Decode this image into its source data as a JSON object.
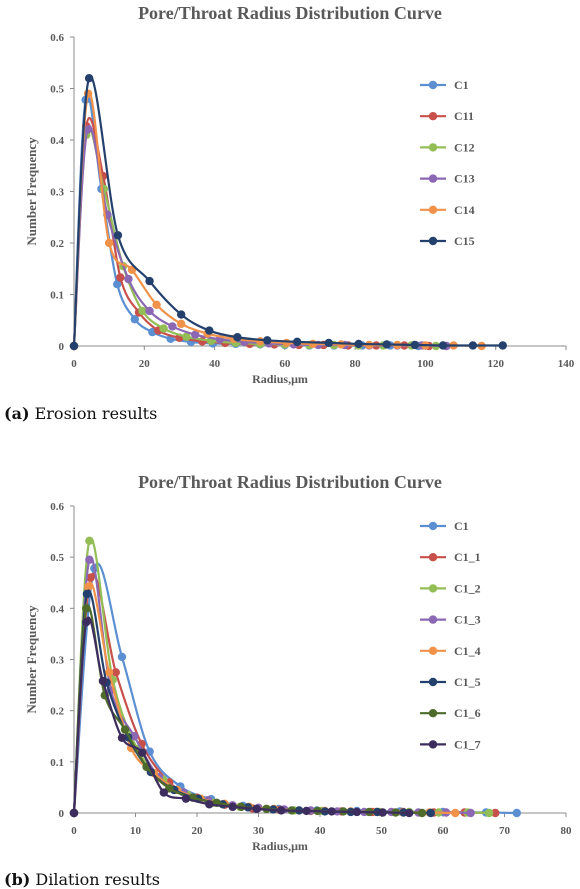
{
  "chart_data": [
    {
      "type": "line",
      "title": "Pore/Throat Radius Distribution Curve",
      "xlabel": "Radius,μm",
      "ylabel": "Number Frequency",
      "xlim": [
        0,
        140
      ],
      "ylim": [
        0,
        0.6
      ],
      "xticks": [
        0,
        20,
        40,
        60,
        80,
        100,
        120,
        140
      ],
      "yticks": [
        0,
        0.1,
        0.2,
        0.3,
        0.4,
        0.5,
        0.6
      ],
      "grid": false,
      "legend": "right",
      "series": [
        {
          "name": "C1",
          "color": "#5b8fd2",
          "x": [
            0,
            3.3,
            7.8,
            12.3,
            17.3,
            22.3,
            27.5,
            33.3,
            39.5,
            46,
            53,
            60,
            67,
            74,
            82,
            90,
            98
          ],
          "y": [
            0,
            0.478,
            0.305,
            0.12,
            0.052,
            0.027,
            0.014,
            0.008,
            0.005,
            0.004,
            0.003,
            0.002,
            0.001,
            0.001,
            0.001,
            0.001,
            0
          ]
        },
        {
          "name": "C11",
          "color": "#c8504b",
          "x": [
            0,
            3.5,
            8.3,
            13.2,
            18.5,
            24,
            30,
            36.5,
            43,
            50,
            57,
            64,
            71,
            78,
            86,
            94,
            101
          ],
          "y": [
            0,
            0.427,
            0.33,
            0.133,
            0.065,
            0.03,
            0.016,
            0.009,
            0.006,
            0.004,
            0.003,
            0.002,
            0.002,
            0.001,
            0.001,
            0.001,
            0
          ]
        },
        {
          "name": "C12",
          "color": "#93be55",
          "x": [
            0,
            3.5,
            8.5,
            14,
            19.5,
            25.5,
            32,
            39,
            46,
            53,
            60,
            67,
            74,
            81,
            88,
            96,
            103
          ],
          "y": [
            0,
            0.41,
            0.305,
            0.155,
            0.068,
            0.034,
            0.018,
            0.01,
            0.006,
            0.004,
            0.003,
            0.002,
            0.002,
            0.001,
            0.001,
            0.001,
            0
          ]
        },
        {
          "name": "C13",
          "color": "#8b67b4",
          "x": [
            0,
            3.8,
            9.5,
            15.5,
            21.5,
            28,
            34.5,
            41.5,
            48.5,
            55.5,
            62.5,
            69.5,
            77,
            84,
            92,
            99,
            106
          ],
          "y": [
            0,
            0.42,
            0.255,
            0.13,
            0.068,
            0.038,
            0.022,
            0.013,
            0.008,
            0.005,
            0.003,
            0.002,
            0.002,
            0.001,
            0.001,
            0.001,
            0
          ]
        },
        {
          "name": "C14",
          "color": "#f0924a",
          "x": [
            0,
            4,
            10,
            16.5,
            23.5,
            30.5,
            38,
            45.5,
            53,
            60.5,
            68,
            76,
            84,
            92,
            100,
            108,
            116
          ],
          "y": [
            0,
            0.49,
            0.2,
            0.148,
            0.08,
            0.043,
            0.024,
            0.014,
            0.009,
            0.006,
            0.004,
            0.003,
            0.002,
            0.002,
            0.001,
            0.001,
            0
          ]
        },
        {
          "name": "C15",
          "color": "#24406c",
          "x": [
            0,
            4.3,
            12.5,
            21.5,
            30.5,
            38.5,
            46.5,
            55,
            63.5,
            72.5,
            81,
            89,
            97,
            105,
            113.5,
            122
          ],
          "y": [
            0,
            0.52,
            0.215,
            0.126,
            0.061,
            0.03,
            0.017,
            0.011,
            0.008,
            0.006,
            0.004,
            0.003,
            0.002,
            0.001,
            0.001,
            0.001
          ]
        }
      ]
    },
    {
      "type": "line",
      "title": "Pore/Throat Radius Distribution Curve",
      "xlabel": "Radius,μm",
      "ylabel": "Number Frequency",
      "xlim": [
        0,
        80
      ],
      "ylim": [
        0,
        0.6
      ],
      "xticks": [
        0,
        10,
        20,
        30,
        40,
        50,
        60,
        70,
        80
      ],
      "yticks": [
        0,
        0.1,
        0.2,
        0.3,
        0.4,
        0.5,
        0.6
      ],
      "grid": false,
      "legend": "right",
      "series": [
        {
          "name": "C1",
          "color": "#5b8fd2",
          "x": [
            0,
            3.3,
            7.8,
            12.3,
            17.3,
            22.3,
            27.5,
            33.3,
            39.5,
            46,
            53,
            60,
            67,
            72
          ],
          "y": [
            0,
            0.478,
            0.305,
            0.12,
            0.052,
            0.027,
            0.014,
            0.008,
            0.005,
            0.004,
            0.003,
            0.002,
            0.001,
            0
          ]
        },
        {
          "name": "C1_1",
          "color": "#c8504b",
          "x": [
            0,
            2.7,
            6.8,
            11,
            15.5,
            20,
            24.5,
            29,
            33.5,
            38.5,
            43.5,
            48.5,
            53.5,
            58.5,
            63.5,
            68.5
          ],
          "y": [
            0,
            0.46,
            0.275,
            0.135,
            0.06,
            0.03,
            0.016,
            0.009,
            0.006,
            0.004,
            0.003,
            0.002,
            0.002,
            0.001,
            0.001,
            0
          ]
        },
        {
          "name": "C1_2",
          "color": "#93be55",
          "x": [
            0,
            2.5,
            6.3,
            10.3,
            14.5,
            18.5,
            22.7,
            27,
            31.3,
            35.8,
            40.3,
            45,
            49.7,
            54.5,
            59.3,
            64,
            67.5
          ],
          "y": [
            0,
            0.532,
            0.26,
            0.125,
            0.065,
            0.035,
            0.02,
            0.012,
            0.008,
            0.005,
            0.004,
            0.003,
            0.002,
            0.002,
            0.001,
            0.001,
            0
          ]
        },
        {
          "name": "C1_3",
          "color": "#8b67b4",
          "x": [
            0,
            2.5,
            6,
            9.8,
            13.8,
            17.8,
            21.8,
            25.8,
            30,
            34.2,
            38.5,
            42.8,
            47.2,
            51.6,
            56,
            60.5,
            64.5
          ],
          "y": [
            0,
            0.495,
            0.24,
            0.15,
            0.07,
            0.04,
            0.025,
            0.015,
            0.01,
            0.007,
            0.005,
            0.003,
            0.002,
            0.002,
            0.001,
            0.001,
            0
          ]
        },
        {
          "name": "C1_4",
          "color": "#f0924a",
          "x": [
            0,
            2.3,
            5.7,
            9.3,
            13,
            16.8,
            20.6,
            24.5,
            28.5,
            32.5,
            36.6,
            40.8,
            45,
            49.2,
            53.5,
            57.8,
            62
          ],
          "y": [
            0,
            0.442,
            0.275,
            0.127,
            0.078,
            0.045,
            0.028,
            0.018,
            0.012,
            0.008,
            0.005,
            0.004,
            0.003,
            0.002,
            0.001,
            0.001,
            0
          ]
        },
        {
          "name": "C1_5",
          "color": "#24406c",
          "x": [
            0,
            2.1,
            5.3,
            8.8,
            12.5,
            16.3,
            20.2,
            24.2,
            28.3,
            32.4,
            36.6,
            40.8,
            45,
            49.3,
            53.6,
            58
          ],
          "y": [
            0,
            0.428,
            0.255,
            0.148,
            0.08,
            0.045,
            0.028,
            0.017,
            0.011,
            0.007,
            0.005,
            0.003,
            0.002,
            0.002,
            0.001,
            0
          ]
        },
        {
          "name": "C1_6",
          "color": "#4f6b2c",
          "x": [
            0,
            2,
            5,
            8.3,
            11.8,
            15.5,
            19.3,
            23.2,
            27.2,
            31.3,
            35.4,
            39.6,
            43.8,
            48,
            52.3,
            56.6
          ],
          "y": [
            0,
            0.4,
            0.23,
            0.163,
            0.09,
            0.048,
            0.03,
            0.02,
            0.012,
            0.008,
            0.005,
            0.004,
            0.003,
            0.002,
            0.001,
            0
          ]
        },
        {
          "name": "C1_7",
          "color": "#3c2d5e",
          "x": [
            0,
            2,
            4.7,
            7.8,
            11.1,
            14.6,
            18.2,
            22,
            25.8,
            29.7,
            33.7,
            37.8,
            41.9,
            46,
            50.2,
            54.5
          ],
          "y": [
            0,
            0.373,
            0.258,
            0.147,
            0.118,
            0.04,
            0.028,
            0.017,
            0.012,
            0.008,
            0.005,
            0.004,
            0.003,
            0.002,
            0.001,
            0
          ]
        }
      ]
    }
  ],
  "captions": {
    "a": {
      "label": "(a)",
      "text": " Erosion results"
    },
    "b": {
      "label": "(b)",
      "text": " Dilation results"
    }
  }
}
